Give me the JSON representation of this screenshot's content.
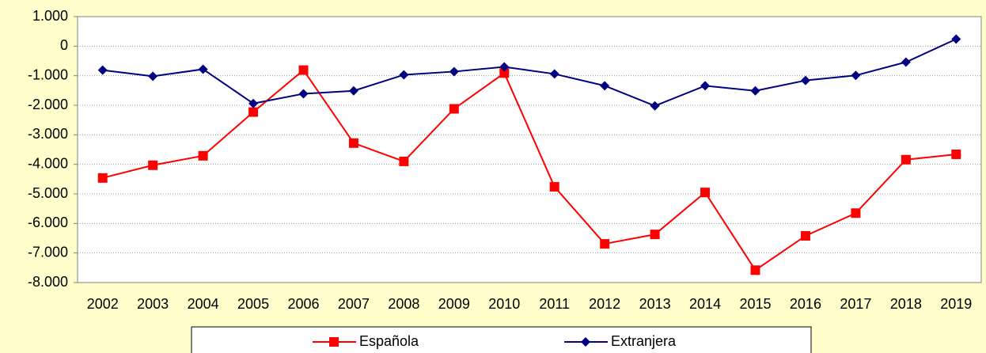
{
  "chart_data": {
    "type": "line",
    "categories": [
      "2002",
      "2003",
      "2004",
      "2005",
      "2006",
      "2007",
      "2008",
      "2009",
      "2010",
      "2011",
      "2012",
      "2013",
      "2014",
      "2015",
      "2016",
      "2017",
      "2018",
      "2019"
    ],
    "series": [
      {
        "name": "Española",
        "color": "#ff0000",
        "marker": "square",
        "values": [
          -4460,
          -4030,
          -3710,
          -2230,
          -810,
          -3280,
          -3900,
          -2120,
          -910,
          -4760,
          -6690,
          -6370,
          -4950,
          -7580,
          -6420,
          -5650,
          -3840,
          -3660
        ]
      },
      {
        "name": "Extranjera",
        "color": "#000080",
        "marker": "diamond",
        "values": [
          -810,
          -1020,
          -780,
          -1940,
          -1610,
          -1510,
          -970,
          -860,
          -700,
          -940,
          -1340,
          -2020,
          -1340,
          -1510,
          -1160,
          -990,
          -540,
          240
        ]
      }
    ],
    "ylim": [
      -8000,
      1000
    ],
    "yticks": [
      {
        "value": 1000,
        "label": "1.000"
      },
      0,
      {
        "value": -1000,
        "label": "-1.000"
      },
      {
        "value": -2000,
        "label": "-2.000"
      },
      {
        "value": -3000,
        "label": "-3.000"
      },
      {
        "value": -4000,
        "label": "-4.000"
      },
      {
        "value": -5000,
        "label": "-5.000"
      },
      {
        "value": -6000,
        "label": "-6.000"
      },
      {
        "value": -7000,
        "label": "-7.000"
      },
      {
        "value": -8000,
        "label": "-8.000"
      }
    ],
    "grid": true,
    "legend": "bottom"
  }
}
